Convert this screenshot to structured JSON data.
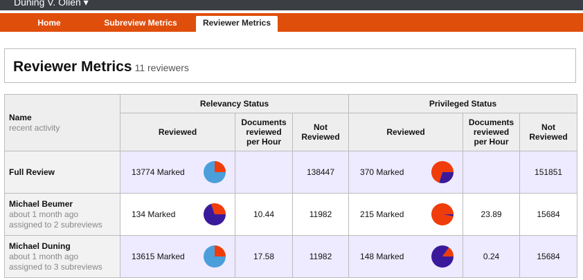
{
  "header": {
    "user": "Duning V. Olien ▾",
    "nav": [
      "Home",
      "Subreview Metrics",
      "Reviewer Metrics"
    ],
    "active_tab": 2
  },
  "title": "Reviewer Metrics",
  "subtitle": "11 reviewers",
  "table": {
    "name_header": "Name",
    "name_subheader": "recent activity",
    "groups": [
      "Relevancy Status",
      "Privileged Status"
    ],
    "columns": [
      "Reviewed",
      "Documents reviewed per Hour",
      "Not Reviewed"
    ],
    "rows": [
      {
        "name": "Full Review",
        "details": [],
        "relevancy": {
          "reviewed": "13774 Marked",
          "pie": {
            "colors": [
              "#4a9fdb",
              "#f03c0a"
            ],
            "values": [
              75,
              25
            ]
          },
          "per_hour": null,
          "not_reviewed": 138447
        },
        "privileged": {
          "reviewed": "370 Marked",
          "pie": {
            "colors": [
              "#3a1a9a",
              "#f03c0a"
            ],
            "values": [
              30,
              70
            ]
          },
          "per_hour": null,
          "not_reviewed": 151851
        }
      },
      {
        "name": "Michael Beumer",
        "details": [
          "about 1 month ago",
          "assigned to 2 subreviews"
        ],
        "relevancy": {
          "reviewed": "134 Marked",
          "pie": {
            "colors": [
              "#3a1a9a",
              "#f03c0a"
            ],
            "values": [
              70,
              30
            ]
          },
          "per_hour": 10.44,
          "not_reviewed": 11982
        },
        "privileged": {
          "reviewed": "215 Marked",
          "pie": {
            "colors": [
              "#3a1a9a",
              "#f03c0a"
            ],
            "values": [
              3,
              97
            ]
          },
          "per_hour": 23.89,
          "not_reviewed": 15684
        }
      },
      {
        "name": "Michael Duning",
        "details": [
          "about 1 month ago",
          "assigned to 3 subreviews"
        ],
        "relevancy": {
          "reviewed": "13615 Marked",
          "pie": {
            "colors": [
              "#4a9fdb",
              "#f03c0a"
            ],
            "values": [
              75,
              25
            ]
          },
          "per_hour": 17.58,
          "not_reviewed": 11982
        },
        "privileged": {
          "reviewed": "148 Marked",
          "pie": {
            "colors": [
              "#3a1a9a",
              "#f03c0a"
            ],
            "values": [
              85,
              15
            ]
          },
          "per_hour": 0.24,
          "not_reviewed": 15684
        }
      }
    ]
  }
}
